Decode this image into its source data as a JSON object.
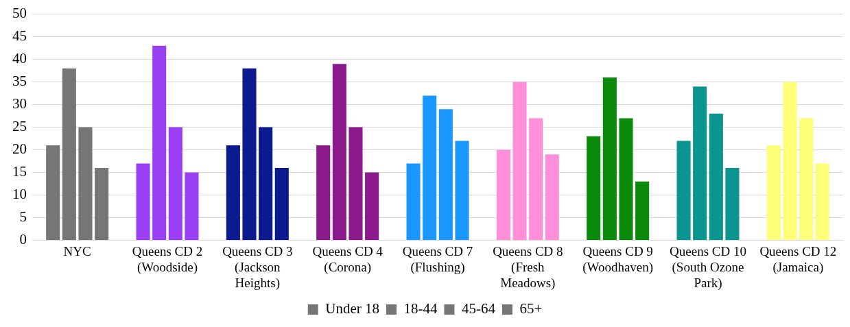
{
  "chart_data": {
    "type": "bar",
    "categories": [
      "NYC",
      "Queens CD 2 (Woodside)",
      "Queens CD 3 (Jackson Heights)",
      "Queens CD 4 (Corona)",
      "Queens CD 7 (Flushing)",
      "Queens CD 8 (Fresh Meadows)",
      "Queens CD 9 (Woodhaven)",
      "Queens CD 10 (South Ozone Park)",
      "Queens CD 12 (Jamaica)"
    ],
    "series": [
      {
        "name": "Under 18",
        "color": "#767676",
        "colors": [
          "#767676",
          "#9b3ff5",
          "#0b1a8c",
          "#8b1a8c",
          "#1a98ff",
          "#ff8fd8",
          "#0b8a0b",
          "#0b9490",
          "#ffff7a"
        ],
        "values": [
          21,
          17,
          21,
          21,
          17,
          20,
          23,
          22,
          21
        ]
      },
      {
        "name": "18-44",
        "color": "#767676",
        "colors": [
          "#767676",
          "#9b3ff5",
          "#0b1a8c",
          "#8b1a8c",
          "#1a98ff",
          "#ff8fd8",
          "#0b8a0b",
          "#0b9490",
          "#ffff7a"
        ],
        "values": [
          38,
          43,
          38,
          39,
          32,
          35,
          36,
          34,
          35
        ]
      },
      {
        "name": "45-64",
        "color": "#767676",
        "colors": [
          "#767676",
          "#9b3ff5",
          "#0b1a8c",
          "#8b1a8c",
          "#1a98ff",
          "#ff8fd8",
          "#0b8a0b",
          "#0b9490",
          "#ffff7a"
        ],
        "values": [
          25,
          25,
          25,
          25,
          29,
          27,
          27,
          28,
          27
        ]
      },
      {
        "name": "65+",
        "color": "#767676",
        "colors": [
          "#767676",
          "#9b3ff5",
          "#0b1a8c",
          "#8b1a8c",
          "#1a98ff",
          "#ff8fd8",
          "#0b8a0b",
          "#0b9490",
          "#ffff7a"
        ],
        "values": [
          16,
          15,
          16,
          15,
          22,
          19,
          13,
          16,
          17
        ]
      }
    ],
    "ylim": [
      0,
      50
    ],
    "yticks": [
      0,
      5,
      10,
      15,
      20,
      25,
      30,
      35,
      40,
      45,
      50
    ],
    "grid": "y",
    "legend": "bottom"
  }
}
